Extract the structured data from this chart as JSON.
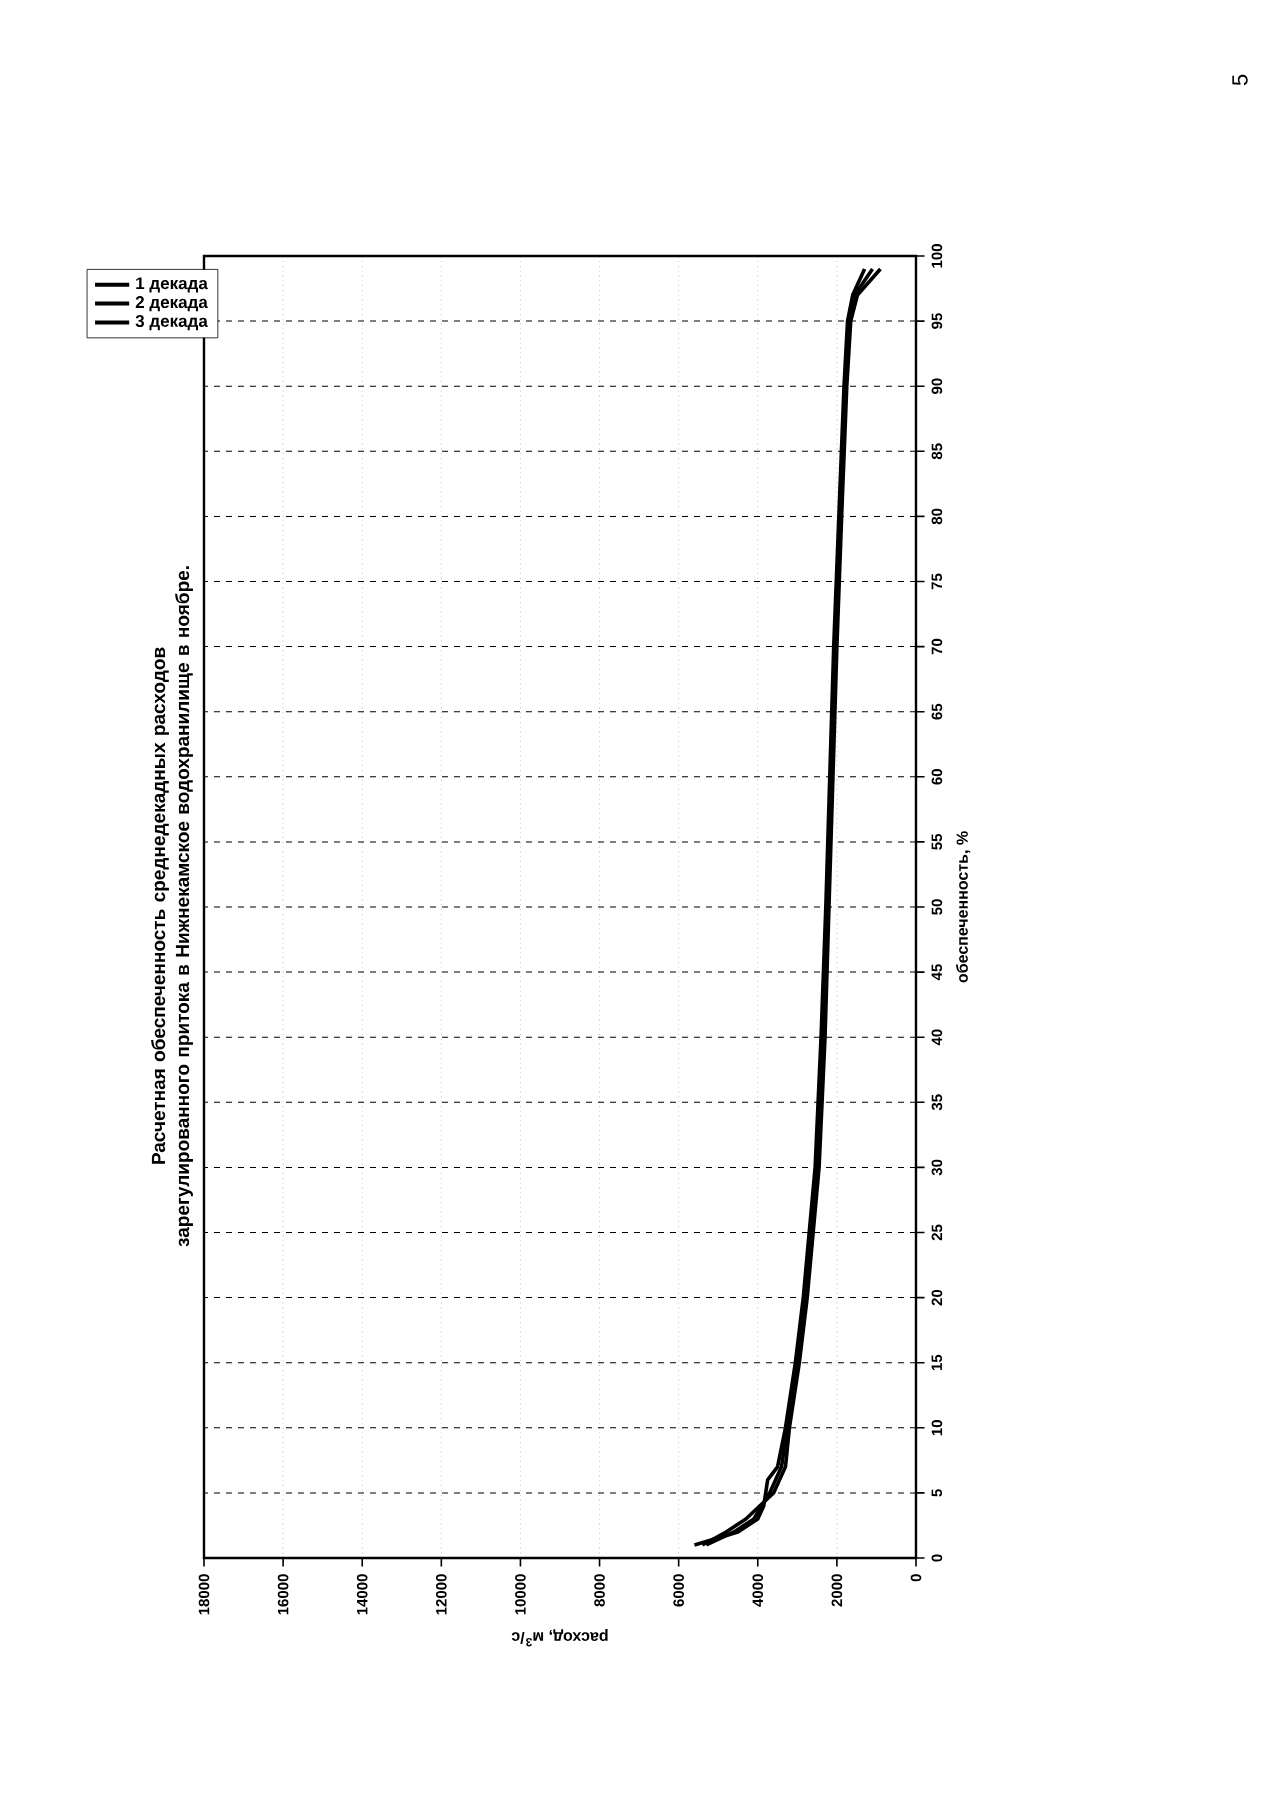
{
  "chart_data": {
    "type": "line",
    "title": "Расчетная обеспеченность среднедекадных расходов зарегулированного притока в Нижнекамское водохранилище в ноябре.",
    "xlabel": "расход, м$^{3}$/с",
    "ylabel": "обеспеченность, %",
    "annotations": [
      "5"
    ],
    "xlim": [
      18000,
      0
    ],
    "xticks": [
      0,
      2000,
      4000,
      6000,
      8000,
      10000,
      12000,
      14000,
      16000,
      18000
    ],
    "ylim": [
      0,
      100
    ],
    "yticks": [
      0,
      5,
      10,
      15,
      20,
      25,
      30,
      35,
      40,
      45,
      50,
      55,
      60,
      65,
      70,
      75,
      80,
      85,
      90,
      95,
      100
    ],
    "grid": true,
    "legend": "top left",
    "marker": "none",
    "line_style": "solid",
    "series": [
      {
        "name": "1 декада",
        "color": "#000000",
        "x": [
          5300,
          4600,
          4100,
          3700,
          3400,
          3250,
          3000,
          2800,
          2650,
          2500,
          2350,
          2250,
          2150,
          2050,
          1900,
          1780,
          1700,
          1550,
          1100
        ],
        "values": [
          1,
          2,
          3,
          5,
          7,
          10,
          15,
          20,
          25,
          30,
          40,
          50,
          60,
          70,
          80,
          90,
          95,
          97,
          99
        ]
      },
      {
        "name": "2 декада",
        "color": "#000000",
        "x": [
          5600,
          4500,
          4000,
          3850,
          3800,
          3750,
          3500,
          3300,
          3050,
          2850,
          2700,
          2550,
          2400,
          2280,
          2180,
          2080,
          1950,
          1820,
          1730,
          1600,
          1300
        ],
        "values": [
          1,
          2,
          3,
          4,
          5,
          6,
          7,
          10,
          15,
          20,
          25,
          30,
          40,
          50,
          60,
          70,
          80,
          90,
          95,
          97,
          99
        ]
      },
      {
        "name": "3 декада",
        "color": "#000000",
        "x": [
          5400,
          4800,
          4300,
          3600,
          3300,
          3200,
          2950,
          2750,
          2600,
          2450,
          2300,
          2200,
          2100,
          2000,
          1880,
          1750,
          1650,
          1480,
          900
        ],
        "values": [
          1,
          2,
          3,
          5,
          7,
          10,
          15,
          20,
          25,
          30,
          40,
          50,
          60,
          70,
          80,
          90,
          95,
          97,
          99
        ]
      }
    ]
  }
}
